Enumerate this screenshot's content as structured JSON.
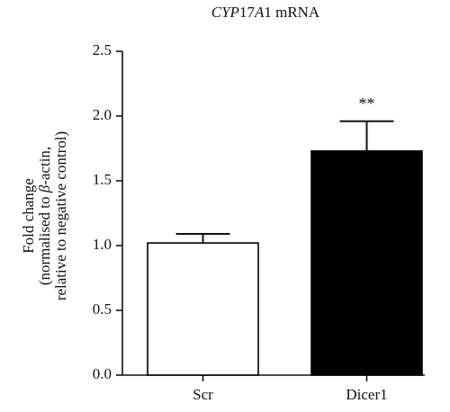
{
  "chart_data": {
    "type": "bar",
    "title_parts": [
      {
        "text": "CYP",
        "italic": true
      },
      {
        "text": "17",
        "italic": false
      },
      {
        "text": "A",
        "italic": true
      },
      {
        "text": "1 mRNA",
        "italic": false
      }
    ],
    "title": "CYP17A1 mRNA",
    "categories": [
      "Scr",
      "Dicer1"
    ],
    "values": [
      1.02,
      1.73
    ],
    "errors": [
      0.07,
      0.23
    ],
    "bar_fill": [
      "#ffffff",
      "#000000"
    ],
    "bar_stroke": "#000000",
    "significance": [
      "",
      "**"
    ],
    "ylabel_lines": [
      [
        {
          "text": "Fold change",
          "italic": false
        }
      ],
      [
        {
          "text": "(normalised to ",
          "italic": false
        },
        {
          "text": "β",
          "italic": true
        },
        {
          "text": "-actin,",
          "italic": false
        }
      ],
      [
        {
          "text": "relative to negative control)",
          "italic": false
        }
      ]
    ],
    "yticks": [
      "0.0",
      "0.5",
      "1.0",
      "1.5",
      "2.0",
      "2.5"
    ],
    "ylim": [
      0,
      2.5
    ],
    "grid": false
  }
}
